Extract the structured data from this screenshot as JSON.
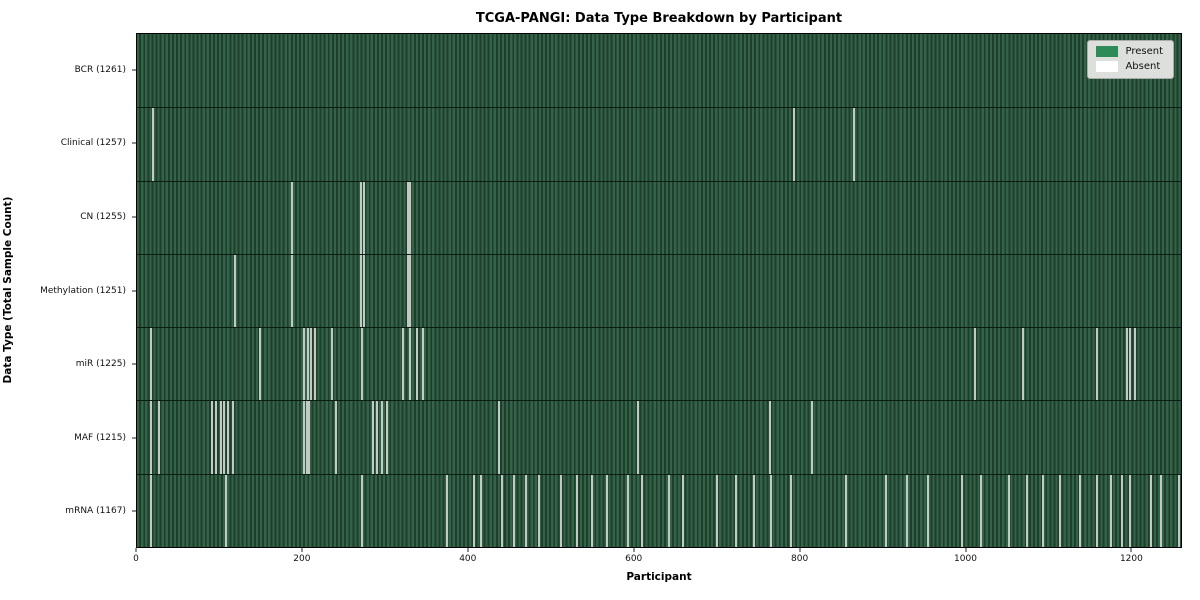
{
  "title": "TCGA-PANGI: Data Type Breakdown by Participant",
  "axes": {
    "xlabel": "Participant",
    "ylabel": "Data Type (Total Sample Count)"
  },
  "legend": {
    "items": [
      {
        "label": "Present",
        "color": "#2E8B57"
      },
      {
        "label": "Absent",
        "color": "#FFFFFF"
      }
    ]
  },
  "chart_data": {
    "type": "heatmap",
    "title": "TCGA-PANGI: Data Type Breakdown by Participant",
    "xlabel": "Participant",
    "ylabel": "Data Type (Total Sample Count)",
    "x_max": 1261,
    "x_ticks": [
      0,
      200,
      400,
      600,
      800,
      1000,
      1200
    ],
    "legend_position": "upper right",
    "colors": {
      "present_fill": "#2E8B57",
      "present_stripe_light": "#336349",
      "present_stripe_dark": "#1F3F2C",
      "absent_line": "#C3CAC3",
      "row_border": "#0A190F"
    },
    "rows": [
      {
        "data_type": "BCR",
        "total": 1261,
        "label": "BCR (1261)",
        "absent_at": []
      },
      {
        "data_type": "Clinical",
        "total": 1257,
        "label": "Clinical (1257)",
        "absent_at": [
          19,
          794,
          866
        ]
      },
      {
        "data_type": "CN",
        "total": 1255,
        "label": "CN (1255)",
        "absent_at": [
          187,
          271,
          274,
          327,
          330
        ]
      },
      {
        "data_type": "Methylation",
        "total": 1251,
        "label": "Methylation (1251)",
        "absent_at": [
          118,
          187,
          271,
          274,
          327,
          330
        ]
      },
      {
        "data_type": "miR",
        "total": 1225,
        "label": "miR (1225)",
        "absent_at": [
          17,
          148,
          202,
          206,
          210,
          215,
          235,
          272,
          321,
          330,
          338,
          346,
          1012,
          1070,
          1160,
          1196,
          1199,
          1205
        ]
      },
      {
        "data_type": "MAF",
        "total": 1215,
        "label": "MAF (1215)",
        "absent_at": [
          17,
          27,
          91,
          96,
          101,
          105,
          110,
          116,
          202,
          205,
          208,
          240,
          285,
          290,
          296,
          302,
          437,
          605,
          765,
          815
        ]
      },
      {
        "data_type": "mRNA",
        "total": 1167,
        "label": "mRNA (1167)",
        "absent_at": [
          17,
          108,
          272,
          375,
          407,
          416,
          441,
          455,
          470,
          486,
          512,
          531,
          550,
          568,
          593,
          610,
          642,
          660,
          700,
          724,
          745,
          766,
          790,
          856,
          905,
          930,
          955,
          996,
          1020,
          1053,
          1075,
          1094,
          1115,
          1139,
          1160,
          1177,
          1190,
          1200,
          1225,
          1237,
          1258
        ]
      }
    ]
  }
}
